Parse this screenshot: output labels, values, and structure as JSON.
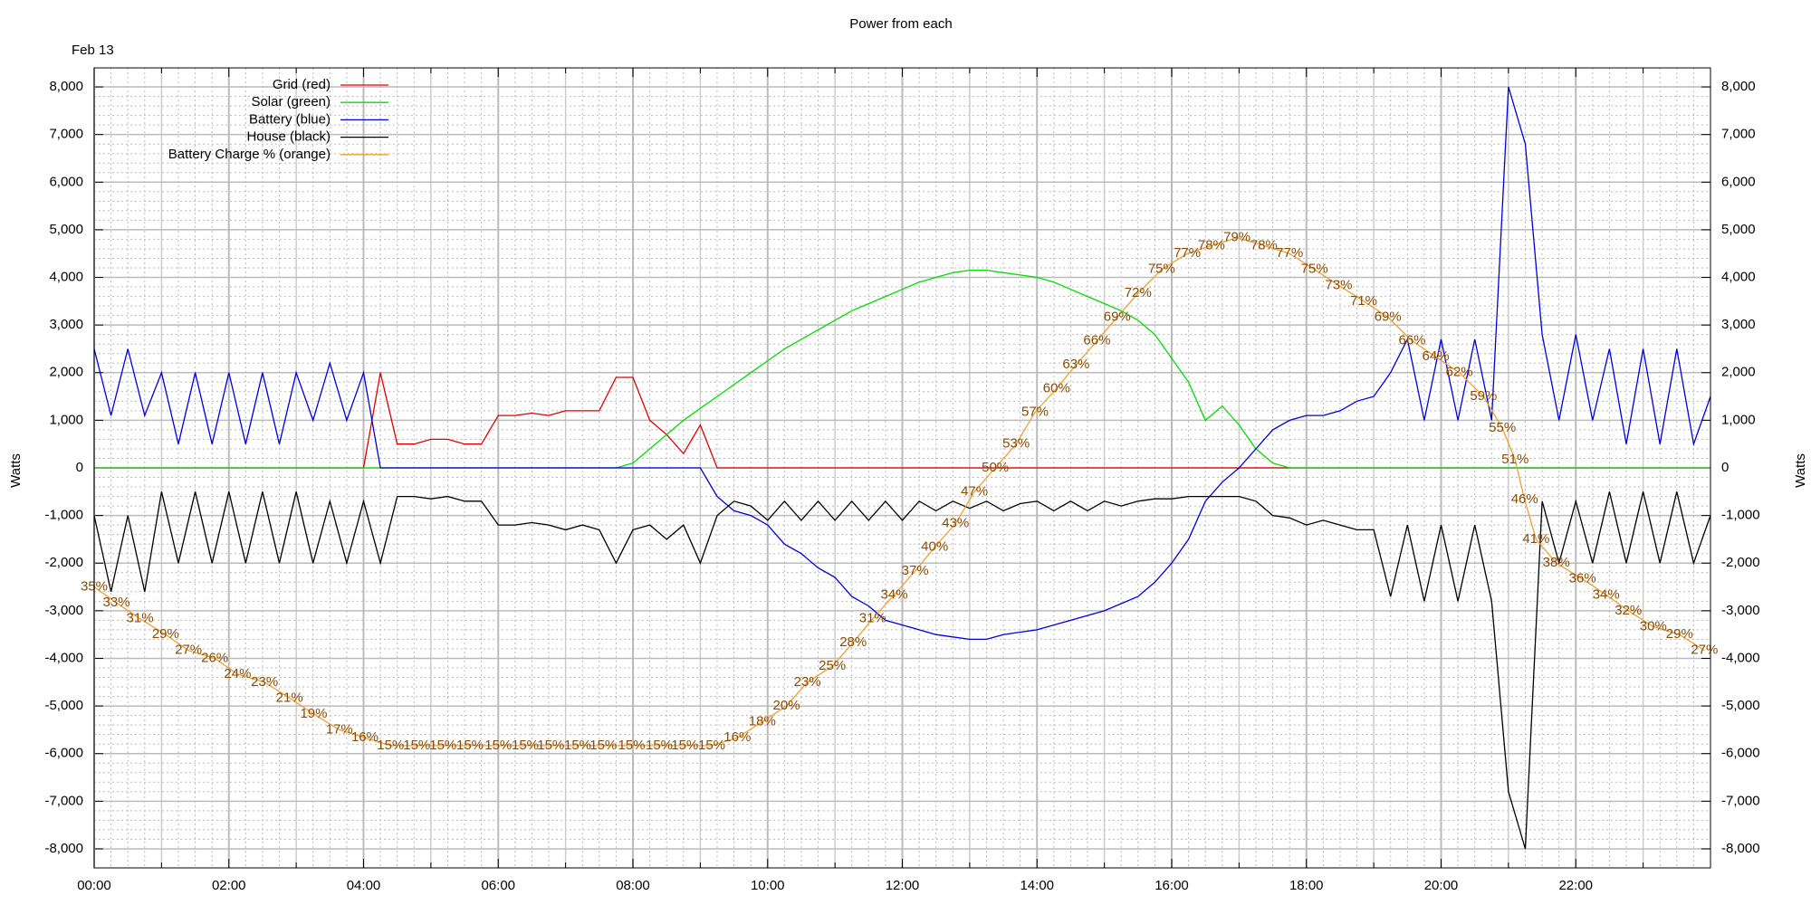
{
  "chart_data": {
    "type": "line",
    "title": "Power from each",
    "annotation": "Feb 13",
    "ylabel": "Watts",
    "y2label": "Watts",
    "xlim": [
      0,
      24
    ],
    "xticks": [
      {
        "value": 0,
        "label": "00:00"
      },
      {
        "value": 2,
        "label": "02:00"
      },
      {
        "value": 4,
        "label": "04:00"
      },
      {
        "value": 6,
        "label": "06:00"
      },
      {
        "value": 8,
        "label": "08:00"
      },
      {
        "value": 10,
        "label": "10:00"
      },
      {
        "value": 12,
        "label": "12:00"
      },
      {
        "value": 14,
        "label": "14:00"
      },
      {
        "value": 16,
        "label": "16:00"
      },
      {
        "value": 18,
        "label": "18:00"
      },
      {
        "value": 20,
        "label": "20:00"
      },
      {
        "value": 22,
        "label": "22:00"
      }
    ],
    "ylim": [
      -8400,
      8400
    ],
    "yticks": [
      {
        "value": 8000,
        "label": "8,000"
      },
      {
        "value": 7000,
        "label": "7,000"
      },
      {
        "value": 6000,
        "label": "6,000"
      },
      {
        "value": 5000,
        "label": "5,000"
      },
      {
        "value": 4000,
        "label": "4,000"
      },
      {
        "value": 3000,
        "label": "3,000"
      },
      {
        "value": 2000,
        "label": "2,000"
      },
      {
        "value": 1000,
        "label": "1,000"
      },
      0,
      {
        "value": -1000,
        "label": "-1,000"
      },
      {
        "value": -2000,
        "label": "-2,000"
      },
      {
        "value": -3000,
        "label": "-3,000"
      },
      {
        "value": -4000,
        "label": "-4,000"
      },
      {
        "value": -5000,
        "label": "-5,000"
      },
      {
        "value": -6000,
        "label": "-6,000"
      },
      {
        "value": -7000,
        "label": "-7,000"
      },
      {
        "value": -8000,
        "label": "-8,000"
      }
    ],
    "y2lim": [
      -8400,
      8400
    ],
    "y2ticks": [
      {
        "value": 8000,
        "label": "8,000"
      },
      {
        "value": 7000,
        "label": "7,000"
      },
      {
        "value": 6000,
        "label": "6,000"
      },
      {
        "value": 5000,
        "label": "5,000"
      },
      {
        "value": 4000,
        "label": "4,000"
      },
      {
        "value": 3000,
        "label": "3,000"
      },
      {
        "value": 2000,
        "label": "2,000"
      },
      {
        "value": 1000,
        "label": "1,000"
      },
      0,
      {
        "value": -1000,
        "label": "-1,000"
      },
      {
        "value": -2000,
        "label": "-2,000"
      },
      {
        "value": -3000,
        "label": "-3,000"
      },
      {
        "value": -4000,
        "label": "-4,000"
      },
      {
        "value": -5000,
        "label": "-5,000"
      },
      {
        "value": -6000,
        "label": "-6,000"
      },
      {
        "value": -7000,
        "label": "-7,000"
      },
      {
        "value": -8000,
        "label": "-8,000"
      }
    ],
    "y3lim": [
      -0.4,
      100.4
    ],
    "grid": true,
    "legend": "upper left",
    "x": [
      0,
      0.25,
      0.5,
      0.75,
      1,
      1.25,
      1.5,
      1.75,
      2,
      2.25,
      2.5,
      2.75,
      3,
      3.25,
      3.5,
      3.75,
      4,
      4.25,
      4.5,
      4.75,
      5,
      5.25,
      5.5,
      5.75,
      6,
      6.25,
      6.5,
      6.75,
      7,
      7.25,
      7.5,
      7.75,
      8,
      8.25,
      8.5,
      8.75,
      9,
      9.25,
      9.5,
      9.75,
      10,
      10.25,
      10.5,
      10.75,
      11,
      11.25,
      11.5,
      11.75,
      12,
      12.25,
      12.5,
      12.75,
      13,
      13.25,
      13.5,
      13.75,
      14,
      14.25,
      14.5,
      14.75,
      15,
      15.25,
      15.5,
      15.75,
      16,
      16.25,
      16.5,
      16.75,
      17,
      17.25,
      17.5,
      17.75,
      18,
      18.25,
      18.5,
      18.75,
      19,
      19.25,
      19.5,
      19.75,
      20,
      20.25,
      20.5,
      20.75,
      21,
      21.25,
      21.5,
      21.75,
      22,
      22.25,
      22.5,
      22.75,
      23,
      23.25,
      23.5,
      23.75,
      24
    ],
    "series": [
      {
        "name": "Grid (red)",
        "color": "#e00000",
        "values": [
          0,
          0,
          0,
          0,
          0,
          0,
          0,
          0,
          0,
          0,
          0,
          0,
          0,
          0,
          0,
          0,
          0,
          2000,
          500,
          500,
          600,
          600,
          500,
          500,
          1100,
          1100,
          1150,
          1100,
          1200,
          1200,
          1200,
          1900,
          1900,
          1000,
          700,
          300,
          900,
          0,
          0,
          0,
          0,
          0,
          0,
          0,
          0,
          0,
          0,
          0,
          0,
          0,
          0,
          0,
          0,
          0,
          0,
          0,
          0,
          0,
          0,
          0,
          0,
          0,
          0,
          0,
          0,
          0,
          0,
          0,
          0,
          0,
          0,
          0,
          0,
          0,
          0,
          0,
          0,
          0,
          0,
          0,
          0,
          0,
          0,
          0,
          0,
          0,
          0,
          0,
          0,
          0,
          0,
          0,
          0,
          0,
          0,
          0,
          0
        ]
      },
      {
        "name": "Solar (green)",
        "color": "#00dd00",
        "values": [
          0,
          0,
          0,
          0,
          0,
          0,
          0,
          0,
          0,
          0,
          0,
          0,
          0,
          0,
          0,
          0,
          0,
          0,
          0,
          0,
          0,
          0,
          0,
          0,
          0,
          0,
          0,
          0,
          0,
          0,
          0,
          0,
          100,
          400,
          700,
          1000,
          1250,
          1500,
          1750,
          2000,
          2250,
          2500,
          2700,
          2900,
          3100,
          3300,
          3450,
          3600,
          3750,
          3900,
          4000,
          4100,
          4150,
          4150,
          4100,
          4050,
          4000,
          3900,
          3750,
          3600,
          3450,
          3300,
          3100,
          2800,
          2300,
          1800,
          1000,
          1300,
          900,
          400,
          100,
          0,
          0,
          0,
          0,
          0,
          0,
          0,
          0,
          0,
          0,
          0,
          0,
          0,
          0,
          0,
          0,
          0,
          0,
          0,
          0,
          0,
          0,
          0,
          0,
          0,
          0
        ]
      },
      {
        "name": "Battery (blue)",
        "color": "#0000dd",
        "values": [
          2500,
          1100,
          2500,
          1100,
          2000,
          500,
          2000,
          500,
          2000,
          500,
          2000,
          500,
          2000,
          1000,
          2200,
          1000,
          2000,
          0,
          0,
          0,
          0,
          0,
          0,
          0,
          0,
          0,
          0,
          0,
          0,
          0,
          0,
          0,
          0,
          0,
          0,
          0,
          0,
          -600,
          -900,
          -1000,
          -1200,
          -1600,
          -1800,
          -2100,
          -2300,
          -2700,
          -2900,
          -3200,
          -3300,
          -3400,
          -3500,
          -3550,
          -3600,
          -3600,
          -3500,
          -3450,
          -3400,
          -3300,
          -3200,
          -3100,
          -3000,
          -2850,
          -2700,
          -2400,
          -2000,
          -1500,
          -700,
          -300,
          0,
          400,
          800,
          1000,
          1100,
          1100,
          1200,
          1400,
          1500,
          2000,
          2700,
          1000,
          2700,
          1000,
          2700,
          1000,
          8000,
          6800,
          2800,
          1000,
          2800,
          1000,
          2500,
          500,
          2500,
          500,
          2500,
          500,
          1500
        ]
      },
      {
        "name": "House (black)",
        "color": "#000000",
        "values": [
          -1000,
          -2600,
          -1000,
          -2600,
          -500,
          -2000,
          -500,
          -2000,
          -500,
          -2000,
          -500,
          -2000,
          -500,
          -2000,
          -700,
          -2000,
          -700,
          -2000,
          -600,
          -600,
          -650,
          -600,
          -700,
          -700,
          -1200,
          -1200,
          -1150,
          -1200,
          -1300,
          -1200,
          -1300,
          -2000,
          -1300,
          -1200,
          -1500,
          -1200,
          -2000,
          -1000,
          -700,
          -800,
          -1100,
          -700,
          -1100,
          -700,
          -1100,
          -700,
          -1100,
          -700,
          -1100,
          -700,
          -900,
          -700,
          -850,
          -700,
          -900,
          -750,
          -700,
          -900,
          -700,
          -900,
          -700,
          -800,
          -700,
          -650,
          -650,
          -600,
          -600,
          -600,
          -600,
          -700,
          -1000,
          -1050,
          -1200,
          -1100,
          -1200,
          -1300,
          -1300,
          -2700,
          -1200,
          -2800,
          -1200,
          -2800,
          -1200,
          -2800,
          -6800,
          -8000,
          -700,
          -2000,
          -700,
          -2000,
          -500,
          -2000,
          -500,
          -2000,
          -500,
          -2000,
          -1000
        ]
      },
      {
        "name": "Battery Charge % (orange)",
        "color": "#f0a030",
        "axis": "y3",
        "x": [
          0,
          0.33,
          0.68,
          1.06,
          1.4,
          1.79,
          2.13,
          2.53,
          2.9,
          3.26,
          3.64,
          4.02,
          4.4,
          4.79,
          5.18,
          5.58,
          6,
          6.4,
          6.78,
          7.18,
          7.56,
          7.98,
          8.39,
          8.77,
          9.17,
          9.55,
          9.92,
          10.28,
          10.59,
          10.96,
          11.27,
          11.56,
          11.88,
          12.19,
          12.48,
          12.79,
          13.07,
          13.38,
          13.69,
          13.97,
          14.29,
          14.58,
          14.89,
          15.19,
          15.5,
          15.85,
          16.23,
          16.59,
          16.97,
          17.37,
          17.75,
          18.12,
          18.48,
          18.85,
          19.21,
          19.57,
          19.92,
          20.27,
          20.63,
          20.91,
          21.1,
          21.24,
          21.41,
          21.71,
          22.1,
          22.45,
          22.78,
          23.15,
          23.54,
          23.91
        ],
        "values": [
          35,
          33,
          31,
          29,
          27,
          26,
          24,
          23,
          21,
          19,
          17,
          16,
          15,
          15,
          15,
          15,
          15,
          15,
          15,
          15,
          15,
          15,
          15,
          15,
          15,
          16,
          18,
          20,
          23,
          25,
          28,
          31,
          34,
          37,
          40,
          43,
          47,
          50,
          53,
          57,
          60,
          63,
          66,
          69,
          72,
          75,
          77,
          78,
          79,
          78,
          77,
          75,
          73,
          71,
          69,
          66,
          64,
          62,
          59,
          55,
          51,
          46,
          41,
          38,
          36,
          34,
          32,
          30,
          29,
          27
        ],
        "value_labels": [
          "35%",
          "33%",
          "31%",
          "29%",
          "27%",
          "26%",
          "24%",
          "23%",
          "21%",
          "19%",
          "17%",
          "16%",
          "15%",
          "15%",
          "15%",
          "15%",
          "15%",
          "15%",
          "15%",
          "15%",
          "15%",
          "15%",
          "15%",
          "15%",
          "15%",
          "16%",
          "18%",
          "20%",
          "23%",
          "25%",
          "28%",
          "31%",
          "34%",
          "37%",
          "40%",
          "43%",
          "47%",
          "50%",
          "53%",
          "57%",
          "60%",
          "63%",
          "66%",
          "69%",
          "72%",
          "75%",
          "77%",
          "78%",
          "79%",
          "78%",
          "77%",
          "75%",
          "73%",
          "71%",
          "69%",
          "66%",
          "64%",
          "62%",
          "59%",
          "55%",
          "51%",
          "46%",
          "41%",
          "38%",
          "36%",
          "34%",
          "32%",
          "30%",
          "29%",
          "27%"
        ]
      }
    ]
  }
}
